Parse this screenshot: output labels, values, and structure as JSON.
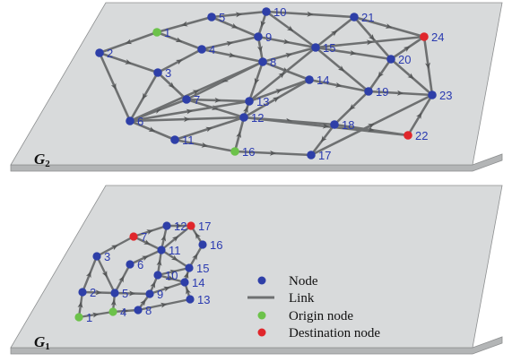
{
  "colors": {
    "plane_top": "#d8dadb",
    "plane_side": "#b3b5b6",
    "plane_stroke": "#8d8f90",
    "link": "#6e7071",
    "node": "#2e3fa8",
    "origin": "#6cc24a",
    "destination": "#e0262b",
    "label": "#2a3ab0"
  },
  "legend": {
    "node": "Node",
    "link": "Link",
    "origin": "Origin node",
    "destination": "Destination node"
  },
  "layers": [
    {
      "label_main": "G",
      "label_sub": "2",
      "nodes": [
        {
          "id": "1",
          "role": "origin"
        },
        {
          "id": "2",
          "role": "normal"
        },
        {
          "id": "3",
          "role": "normal"
        },
        {
          "id": "4",
          "role": "normal"
        },
        {
          "id": "5",
          "role": "normal"
        },
        {
          "id": "6",
          "role": "normal"
        },
        {
          "id": "7",
          "role": "normal"
        },
        {
          "id": "8",
          "role": "normal"
        },
        {
          "id": "9",
          "role": "normal"
        },
        {
          "id": "10",
          "role": "normal"
        },
        {
          "id": "11",
          "role": "normal"
        },
        {
          "id": "12",
          "role": "normal"
        },
        {
          "id": "13",
          "role": "normal"
        },
        {
          "id": "14",
          "role": "normal"
        },
        {
          "id": "15",
          "role": "normal"
        },
        {
          "id": "16",
          "role": "origin"
        },
        {
          "id": "17",
          "role": "normal"
        },
        {
          "id": "18",
          "role": "normal"
        },
        {
          "id": "19",
          "role": "normal"
        },
        {
          "id": "20",
          "role": "normal"
        },
        {
          "id": "21",
          "role": "normal"
        },
        {
          "id": "22",
          "role": "destination"
        },
        {
          "id": "23",
          "role": "normal"
        },
        {
          "id": "24",
          "role": "destination"
        }
      ],
      "links": [
        [
          "1",
          "2"
        ],
        [
          "1",
          "4"
        ],
        [
          "2",
          "3"
        ],
        [
          "2",
          "6"
        ],
        [
          "3",
          "4"
        ],
        [
          "3",
          "6"
        ],
        [
          "3",
          "7"
        ],
        [
          "4",
          "8"
        ],
        [
          "4",
          "9"
        ],
        [
          "5",
          "1"
        ],
        [
          "5",
          "10"
        ],
        [
          "5",
          "9"
        ],
        [
          "10",
          "9"
        ],
        [
          "10",
          "21"
        ],
        [
          "10",
          "15"
        ],
        [
          "9",
          "8"
        ],
        [
          "9",
          "15"
        ],
        [
          "8",
          "15"
        ],
        [
          "8",
          "14"
        ],
        [
          "8",
          "13"
        ],
        [
          "8",
          "7"
        ],
        [
          "7",
          "12"
        ],
        [
          "7",
          "13"
        ],
        [
          "6",
          "7"
        ],
        [
          "6",
          "12"
        ],
        [
          "6",
          "11"
        ],
        [
          "6",
          "8"
        ],
        [
          "11",
          "12"
        ],
        [
          "11",
          "16"
        ],
        [
          "16",
          "12"
        ],
        [
          "16",
          "17"
        ],
        [
          "12",
          "13"
        ],
        [
          "12",
          "18"
        ],
        [
          "12",
          "22"
        ],
        [
          "12",
          "14"
        ],
        [
          "13",
          "14"
        ],
        [
          "13",
          "15"
        ],
        [
          "14",
          "19"
        ],
        [
          "15",
          "24"
        ],
        [
          "15",
          "20"
        ],
        [
          "15",
          "19"
        ],
        [
          "15",
          "21"
        ],
        [
          "21",
          "24"
        ],
        [
          "21",
          "20"
        ],
        [
          "20",
          "24"
        ],
        [
          "20",
          "23"
        ],
        [
          "20",
          "19"
        ],
        [
          "19",
          "23"
        ],
        [
          "19",
          "18"
        ],
        [
          "18",
          "22"
        ],
        [
          "18",
          "17"
        ],
        [
          "17",
          "23"
        ],
        [
          "22",
          "23"
        ],
        [
          "24",
          "23"
        ],
        [
          "6",
          "13"
        ]
      ]
    },
    {
      "label_main": "G",
      "label_sub": "1",
      "nodes": [
        {
          "id": "1",
          "role": "origin"
        },
        {
          "id": "2",
          "role": "normal"
        },
        {
          "id": "3",
          "role": "normal"
        },
        {
          "id": "4",
          "role": "origin"
        },
        {
          "id": "5",
          "role": "normal"
        },
        {
          "id": "6",
          "role": "normal"
        },
        {
          "id": "7",
          "role": "destination"
        },
        {
          "id": "8",
          "role": "normal"
        },
        {
          "id": "9",
          "role": "normal"
        },
        {
          "id": "10",
          "role": "normal"
        },
        {
          "id": "11",
          "role": "normal"
        },
        {
          "id": "12",
          "role": "normal"
        },
        {
          "id": "13",
          "role": "normal"
        },
        {
          "id": "14",
          "role": "normal"
        },
        {
          "id": "15",
          "role": "normal"
        },
        {
          "id": "16",
          "role": "normal"
        },
        {
          "id": "17",
          "role": "destination"
        }
      ],
      "links": [
        [
          "1",
          "2"
        ],
        [
          "1",
          "4"
        ],
        [
          "2",
          "3"
        ],
        [
          "2",
          "5"
        ],
        [
          "3",
          "7"
        ],
        [
          "3",
          "5"
        ],
        [
          "4",
          "5"
        ],
        [
          "4",
          "8"
        ],
        [
          "5",
          "9"
        ],
        [
          "5",
          "6"
        ],
        [
          "6",
          "11"
        ],
        [
          "7",
          "12"
        ],
        [
          "7",
          "11"
        ],
        [
          "8",
          "9"
        ],
        [
          "8",
          "13"
        ],
        [
          "9",
          "10"
        ],
        [
          "9",
          "14"
        ],
        [
          "10",
          "11"
        ],
        [
          "10",
          "14"
        ],
        [
          "11",
          "12"
        ],
        [
          "11",
          "17"
        ],
        [
          "12",
          "17"
        ],
        [
          "13",
          "14"
        ],
        [
          "14",
          "15"
        ],
        [
          "15",
          "16"
        ],
        [
          "16",
          "17"
        ],
        [
          "10",
          "15"
        ],
        [
          "11",
          "15"
        ]
      ]
    }
  ]
}
